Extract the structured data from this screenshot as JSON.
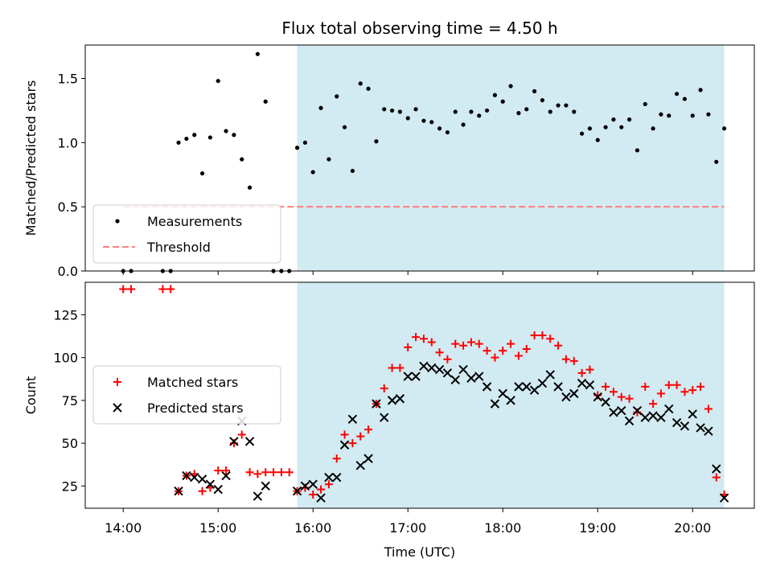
{
  "title": "Flux total observing time = 4.50 h",
  "chart_data": {
    "type": "scatter",
    "title": "Flux total observing time = 4.50 h",
    "xlabel": "Time (UTC)",
    "x_tick_labels": [
      "14:00",
      "15:00",
      "16:00",
      "17:00",
      "18:00",
      "19:00",
      "20:00"
    ],
    "shaded_window": [
      "15:50",
      "20:20"
    ],
    "shade_color": "#add8e6",
    "panels": [
      {
        "ylabel": "Matched/Predicted stars",
        "ylim": [
          0,
          1.76
        ],
        "yticks": [
          0.0,
          0.5,
          1.0,
          1.5
        ],
        "y_tick_labels": [
          "0.0",
          "0.5",
          "1.0",
          "1.5"
        ],
        "legend_position": "lower-left",
        "threshold": {
          "name": "Threshold",
          "value": 0.5,
          "color": "#ff7f7f",
          "x_range": [
            "14:00",
            "20:20"
          ]
        },
        "series": [
          {
            "name": "Measurements",
            "marker": "dot",
            "color": "#000000",
            "points": [
              [
                "14:00",
                0.0
              ],
              [
                "14:05",
                0.0
              ],
              [
                "14:25",
                0.0
              ],
              [
                "14:30",
                0.0
              ],
              [
                "14:35",
                1.0
              ],
              [
                "14:40",
                1.03
              ],
              [
                "14:45",
                1.06
              ],
              [
                "14:50",
                0.76
              ],
              [
                "14:55",
                1.04
              ],
              [
                "15:00",
                1.48
              ],
              [
                "15:05",
                1.09
              ],
              [
                "15:10",
                1.06
              ],
              [
                "15:15",
                0.87
              ],
              [
                "15:20",
                0.65
              ],
              [
                "15:25",
                1.69
              ],
              [
                "15:30",
                1.32
              ],
              [
                "15:35",
                0.0
              ],
              [
                "15:40",
                0.0
              ],
              [
                "15:45",
                0.0
              ],
              [
                "15:50",
                0.96
              ],
              [
                "15:55",
                1.0
              ],
              [
                "16:00",
                0.77
              ],
              [
                "16:05",
                1.27
              ],
              [
                "16:10",
                0.87
              ],
              [
                "16:15",
                1.36
              ],
              [
                "16:20",
                1.12
              ],
              [
                "16:25",
                0.78
              ],
              [
                "16:30",
                1.46
              ],
              [
                "16:35",
                1.42
              ],
              [
                "16:40",
                1.01
              ],
              [
                "16:45",
                1.26
              ],
              [
                "16:50",
                1.25
              ],
              [
                "16:55",
                1.24
              ],
              [
                "17:00",
                1.19
              ],
              [
                "17:05",
                1.26
              ],
              [
                "17:10",
                1.17
              ],
              [
                "17:15",
                1.16
              ],
              [
                "17:20",
                1.11
              ],
              [
                "17:25",
                1.08
              ],
              [
                "17:30",
                1.24
              ],
              [
                "17:35",
                1.14
              ],
              [
                "17:40",
                1.24
              ],
              [
                "17:45",
                1.21
              ],
              [
                "17:50",
                1.25
              ],
              [
                "17:55",
                1.37
              ],
              [
                "18:00",
                1.32
              ],
              [
                "18:05",
                1.44
              ],
              [
                "18:10",
                1.23
              ],
              [
                "18:15",
                1.26
              ],
              [
                "18:20",
                1.4
              ],
              [
                "18:25",
                1.33
              ],
              [
                "18:30",
                1.24
              ],
              [
                "18:35",
                1.29
              ],
              [
                "18:40",
                1.29
              ],
              [
                "18:45",
                1.24
              ],
              [
                "18:50",
                1.07
              ],
              [
                "18:55",
                1.11
              ],
              [
                "19:00",
                1.02
              ],
              [
                "19:05",
                1.12
              ],
              [
                "19:10",
                1.18
              ],
              [
                "19:15",
                1.12
              ],
              [
                "19:20",
                1.18
              ],
              [
                "19:25",
                0.94
              ],
              [
                "19:30",
                1.3
              ],
              [
                "19:35",
                1.11
              ],
              [
                "19:40",
                1.22
              ],
              [
                "19:45",
                1.21
              ],
              [
                "19:50",
                1.38
              ],
              [
                "19:55",
                1.34
              ],
              [
                "20:00",
                1.21
              ],
              [
                "20:05",
                1.41
              ],
              [
                "20:10",
                1.22
              ],
              [
                "20:15",
                0.85
              ],
              [
                "20:20",
                1.11
              ]
            ]
          }
        ]
      },
      {
        "ylabel": "Count",
        "ylim": [
          12,
          144
        ],
        "yticks": [
          25,
          50,
          75,
          100,
          125
        ],
        "y_tick_labels": [
          "25",
          "50",
          "75",
          "100",
          "125"
        ],
        "legend_position": "center-left",
        "series": [
          {
            "name": "Matched stars",
            "marker": "plus",
            "color": "#ff0000",
            "points": [
              [
                "14:00",
                140
              ],
              [
                "14:05",
                140
              ],
              [
                "14:25",
                140
              ],
              [
                "14:30",
                140
              ],
              [
                "14:35",
                22
              ],
              [
                "14:40",
                31
              ],
              [
                "14:45",
                32
              ],
              [
                "14:50",
                22
              ],
              [
                "14:55",
                24
              ],
              [
                "15:00",
                34
              ],
              [
                "15:05",
                34
              ],
              [
                "15:10",
                50
              ],
              [
                "15:15",
                55
              ],
              [
                "15:20",
                33
              ],
              [
                "15:25",
                32
              ],
              [
                "15:30",
                33
              ],
              [
                "15:35",
                33
              ],
              [
                "15:40",
                33
              ],
              [
                "15:45",
                33
              ],
              [
                "15:50",
                22
              ],
              [
                "15:55",
                24
              ],
              [
                "16:00",
                20
              ],
              [
                "16:05",
                23
              ],
              [
                "16:10",
                26
              ],
              [
                "16:15",
                41
              ],
              [
                "16:20",
                55
              ],
              [
                "16:25",
                50
              ],
              [
                "16:30",
                54
              ],
              [
                "16:35",
                58
              ],
              [
                "16:40",
                73
              ],
              [
                "16:45",
                82
              ],
              [
                "16:50",
                94
              ],
              [
                "16:55",
                94
              ],
              [
                "17:00",
                106
              ],
              [
                "17:05",
                112
              ],
              [
                "17:10",
                111
              ],
              [
                "17:15",
                109
              ],
              [
                "17:20",
                103
              ],
              [
                "17:25",
                99
              ],
              [
                "17:30",
                108
              ],
              [
                "17:35",
                107
              ],
              [
                "17:40",
                109
              ],
              [
                "17:45",
                108
              ],
              [
                "17:50",
                104
              ],
              [
                "17:55",
                100
              ],
              [
                "18:00",
                104
              ],
              [
                "18:05",
                108
              ],
              [
                "18:10",
                101
              ],
              [
                "18:15",
                105
              ],
              [
                "18:20",
                113
              ],
              [
                "18:25",
                113
              ],
              [
                "18:30",
                111
              ],
              [
                "18:35",
                107
              ],
              [
                "18:40",
                99
              ],
              [
                "18:45",
                98
              ],
              [
                "18:50",
                91
              ],
              [
                "18:55",
                93
              ],
              [
                "19:00",
                78
              ],
              [
                "19:05",
                83
              ],
              [
                "19:10",
                80
              ],
              [
                "19:15",
                77
              ],
              [
                "19:20",
                76
              ],
              [
                "19:25",
                68
              ],
              [
                "19:30",
                83
              ],
              [
                "19:35",
                73
              ],
              [
                "19:40",
                79
              ],
              [
                "19:45",
                84
              ],
              [
                "19:50",
                84
              ],
              [
                "19:55",
                80
              ],
              [
                "20:00",
                81
              ],
              [
                "20:05",
                83
              ],
              [
                "20:10",
                70
              ],
              [
                "20:15",
                30
              ],
              [
                "20:20",
                20
              ]
            ]
          },
          {
            "name": "Predicted stars",
            "marker": "x",
            "color": "#000000",
            "points": [
              [
                "14:35",
                22
              ],
              [
                "14:40",
                31
              ],
              [
                "14:45",
                30
              ],
              [
                "14:50",
                29
              ],
              [
                "14:55",
                26
              ],
              [
                "15:00",
                23
              ],
              [
                "15:05",
                31
              ],
              [
                "15:10",
                51
              ],
              [
                "15:15",
                63
              ],
              [
                "15:20",
                51
              ],
              [
                "15:25",
                19
              ],
              [
                "15:30",
                25
              ],
              [
                "15:50",
                22
              ],
              [
                "15:55",
                25
              ],
              [
                "16:00",
                26
              ],
              [
                "16:05",
                18
              ],
              [
                "16:10",
                30
              ],
              [
                "16:15",
                30
              ],
              [
                "16:20",
                49
              ],
              [
                "16:25",
                64
              ],
              [
                "16:30",
                37
              ],
              [
                "16:35",
                41
              ],
              [
                "16:40",
                73
              ],
              [
                "16:45",
                65
              ],
              [
                "16:50",
                75
              ],
              [
                "16:55",
                76
              ],
              [
                "17:00",
                89
              ],
              [
                "17:05",
                89
              ],
              [
                "17:10",
                95
              ],
              [
                "17:15",
                94
              ],
              [
                "17:20",
                93
              ],
              [
                "17:25",
                91
              ],
              [
                "17:30",
                87
              ],
              [
                "17:35",
                93
              ],
              [
                "17:40",
                88
              ],
              [
                "17:45",
                89
              ],
              [
                "17:50",
                83
              ],
              [
                "17:55",
                73
              ],
              [
                "18:00",
                79
              ],
              [
                "18:05",
                75
              ],
              [
                "18:10",
                83
              ],
              [
                "18:15",
                83
              ],
              [
                "18:20",
                81
              ],
              [
                "18:25",
                85
              ],
              [
                "18:30",
                90
              ],
              [
                "18:35",
                83
              ],
              [
                "18:40",
                77
              ],
              [
                "18:45",
                79
              ],
              [
                "18:50",
                85
              ],
              [
                "18:55",
                84
              ],
              [
                "19:00",
                77
              ],
              [
                "19:05",
                74
              ],
              [
                "19:10",
                68
              ],
              [
                "19:15",
                69
              ],
              [
                "19:20",
                63
              ],
              [
                "19:25",
                69
              ],
              [
                "19:30",
                65
              ],
              [
                "19:35",
                66
              ],
              [
                "19:40",
                65
              ],
              [
                "19:45",
                70
              ],
              [
                "19:50",
                62
              ],
              [
                "19:55",
                60
              ],
              [
                "20:00",
                67
              ],
              [
                "20:05",
                59
              ],
              [
                "20:10",
                57
              ],
              [
                "20:15",
                35
              ],
              [
                "20:20",
                18
              ]
            ]
          }
        ]
      }
    ]
  }
}
